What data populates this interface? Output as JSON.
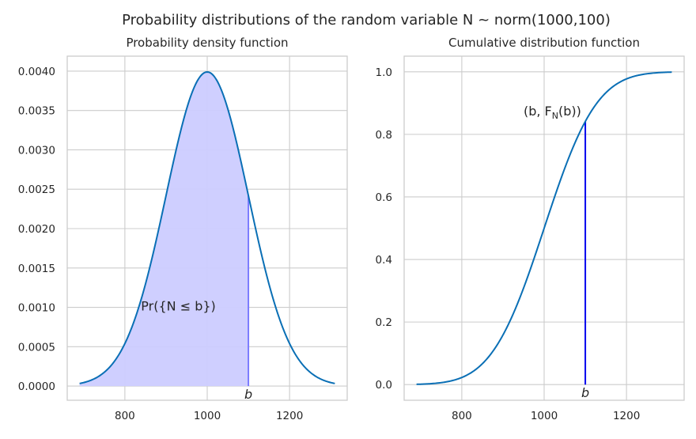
{
  "figure": {
    "suptitle": "Probability distributions of the random variable N ~ norm(1000,100)"
  },
  "chart_data": [
    {
      "type": "line",
      "title": "Probability density function",
      "distribution": {
        "name": "norm",
        "mu": 1000,
        "sigma": 100
      },
      "x_range": [
        690,
        1310
      ],
      "xlim": [
        660,
        1340
      ],
      "ylim": [
        -0.00018,
        0.00419
      ],
      "xticks": [
        800,
        1000,
        1200
      ],
      "yticks": [
        0.0,
        0.0005,
        0.001,
        0.0015,
        0.002,
        0.0025,
        0.003,
        0.0035,
        0.004
      ],
      "ytick_labels": [
        "0.0000",
        "0.0005",
        "0.0010",
        "0.0015",
        "0.0020",
        "0.0025",
        "0.0030",
        "0.0035",
        "0.0040"
      ],
      "b": 1100,
      "b_label": "b",
      "shaded_region": {
        "from": 690,
        "to": 1100,
        "color": "#ccccff"
      },
      "annotation": "Pr({N ≤ b})",
      "annotation_at": {
        "x": 930,
        "y": 0.00096
      },
      "line_color": "#0a6fb5",
      "marker_color": "#7b7bff",
      "grid": true
    },
    {
      "type": "line",
      "title": "Cumulative distribution function",
      "distribution": {
        "name": "norm",
        "mu": 1000,
        "sigma": 100
      },
      "x_range": [
        690,
        1310
      ],
      "xlim": [
        660,
        1340
      ],
      "ylim": [
        -0.05,
        1.05
      ],
      "xticks": [
        800,
        1000,
        1200
      ],
      "yticks": [
        0.0,
        0.2,
        0.4,
        0.6,
        0.8,
        1.0
      ],
      "ytick_labels": [
        "0.0",
        "0.2",
        "0.4",
        "0.6",
        "0.8",
        "1.0"
      ],
      "b": 1100,
      "b_label": "b",
      "annotation": "(b, F",
      "annotation_sub": "N",
      "annotation_tail": "(b))",
      "annotation_at": {
        "x": 1020,
        "y": 0.86
      },
      "line_color": "#0a6fb5",
      "marker_color": "#0000ee",
      "grid": true
    }
  ]
}
